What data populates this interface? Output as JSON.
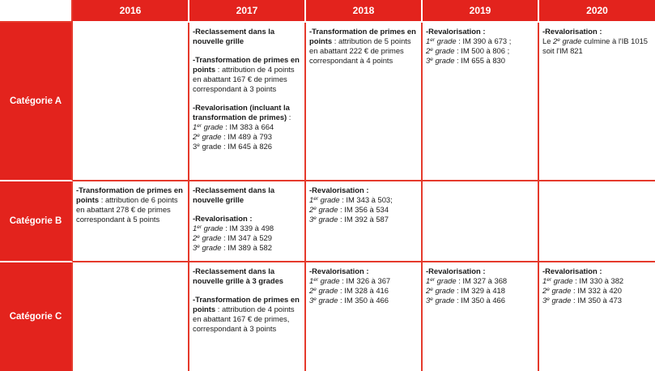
{
  "years": [
    "2016",
    "2017",
    "2018",
    "2019",
    "2020"
  ],
  "categories": [
    "Catégorie A",
    "Catégorie B",
    "Catégorie C"
  ],
  "cells": {
    "A2017": {
      "b1": {
        "head": "-Reclassement dans la nouvelle grille"
      },
      "b2": {
        "head": "-Transformation de primes en points",
        "text": " : attribution de 4 points en abattant 167 € de primes correspondant à 3 points"
      },
      "b3": {
        "head": "-Revalorisation (incluant la transformation de primes)",
        "text": " :",
        "grades": [
          {
            "n": "1",
            "sup": "er",
            "label": " grade",
            "value": " : IM 383 à 664"
          },
          {
            "n": "2",
            "sup": "e",
            "label": " grade",
            "value": " : IM 489 à 793"
          },
          {
            "n": "3",
            "sup": "e",
            "label": " grade",
            "value": " : IM 645 à 826"
          }
        ]
      }
    },
    "A2018": {
      "b1": {
        "head": "-Transformation de primes en points",
        "text": " : attribution de 5 points en abattant 222 € de primes correspondant à 4 points"
      }
    },
    "A2019": {
      "b1": {
        "head": "-Revalorisation :",
        "grades": [
          {
            "n": "1",
            "sup": "er",
            "label": " grade",
            "value": " : IM 390 à 673 ;"
          },
          {
            "n": "2",
            "sup": "e",
            "label": " grade",
            "value": " : IM 500 à 806 ;"
          },
          {
            "n": "3",
            "sup": "e",
            "label": " grade",
            "value": " : IM 655 à 830"
          }
        ]
      }
    },
    "A2020": {
      "b1": {
        "head": "-Revalorisation :",
        "pre": "Le ",
        "n": "2",
        "sup": "e",
        "label": " grade",
        "text": " culmine à l'IB 1015 soit l'IM 821"
      }
    },
    "B2016": {
      "b1": {
        "head": "-Transformation de primes en points",
        "text": " : attribution de 6 points en abattant 278 € de primes correspondant à 5 points"
      }
    },
    "B2017": {
      "b1": {
        "head": "-Reclassement dans la nouvelle grille"
      },
      "b2": {
        "head": "-Revalorisation :",
        "grades": [
          {
            "n": "1",
            "sup": "er",
            "label": " grade",
            "value": " : IM 339 à 498"
          },
          {
            "n": "2",
            "sup": "e",
            "label": " grade",
            "value": " : IM 347 à 529"
          },
          {
            "n": "3",
            "sup": "e",
            "label": " grade",
            "value": " : IM 389 à 582"
          }
        ]
      }
    },
    "B2018": {
      "b1": {
        "head": "-Revalorisation :",
        "grades": [
          {
            "n": "1",
            "sup": "er",
            "label": " grade",
            "value": " : IM 343 à 503;"
          },
          {
            "n": "2",
            "sup": "e",
            "label": " grade",
            "value": " : IM 356 à 534"
          },
          {
            "n": "3",
            "sup": "e",
            "label": " grade",
            "value": " : IM 392 à 587"
          }
        ]
      }
    },
    "C2017": {
      "b1": {
        "head": "-Reclassement dans la nouvelle grille à 3 grades"
      },
      "b2": {
        "head": "-Transformation de primes en points",
        "text": " : attribution de 4 points en abattant 167 € de primes, correspondant à  3 points"
      }
    },
    "C2018": {
      "b1": {
        "head": "-Revalorisation :",
        "grades": [
          {
            "n": "1",
            "sup": "er",
            "label": " grade",
            "value": " : IM 326 à 367"
          },
          {
            "n": "2",
            "sup": "e",
            "label": " grade",
            "value": " : IM 328 à 416"
          },
          {
            "n": "3",
            "sup": "e",
            "label": " grade",
            "value": " : IM 350 à 466"
          }
        ]
      }
    },
    "C2019": {
      "b1": {
        "head": "-Revalorisation :",
        "grades": [
          {
            "n": "1",
            "sup": "er",
            "label": " grade",
            "value": " : IM 327 à 368"
          },
          {
            "n": "2",
            "sup": "e",
            "label": " grade",
            "value": " : IM 329 à 418"
          },
          {
            "n": "3",
            "sup": "e",
            "label": " grade",
            "value": " : IM 350 à 466"
          }
        ]
      }
    },
    "C2020": {
      "b1": {
        "head": "-Revalorisation :",
        "grades": [
          {
            "n": "1",
            "sup": "er",
            "label": " grade",
            "value": " : IM 330 à 382"
          },
          {
            "n": "2",
            "sup": "e",
            "label": " grade",
            "value": " : IM 332 à 420"
          },
          {
            "n": "3",
            "sup": "e",
            "label": " grade",
            "value": " : IM 350 à 473"
          }
        ]
      }
    }
  },
  "colors": {
    "header_red": "#e3231d",
    "border_red": "#e53a2c",
    "header_text": "#ffffff"
  }
}
